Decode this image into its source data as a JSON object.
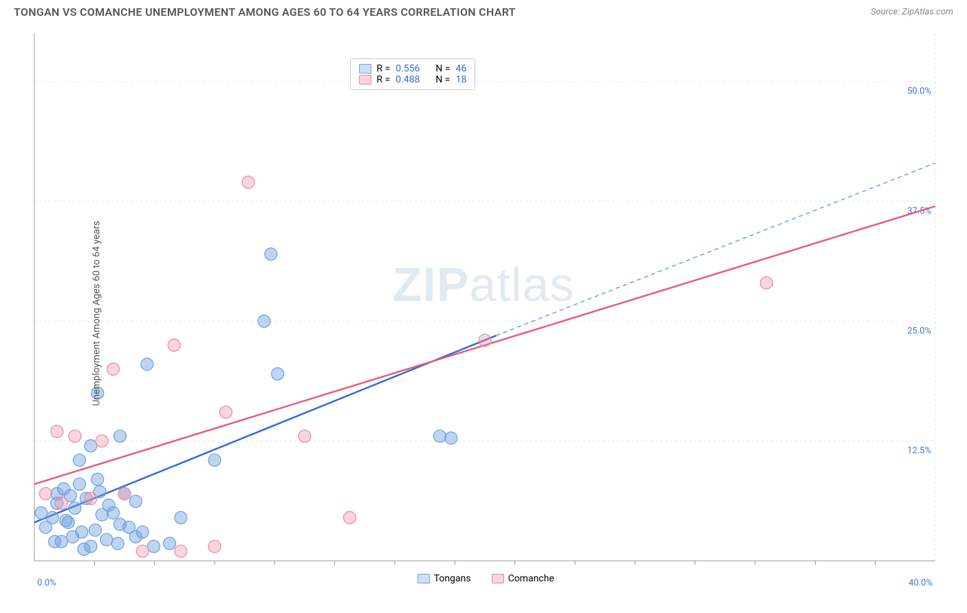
{
  "title": "TONGAN VS COMANCHE UNEMPLOYMENT AMONG AGES 60 TO 64 YEARS CORRELATION CHART",
  "source_label": "Source: ",
  "source_name": "ZipAtlas.com",
  "ylabel": "Unemployment Among Ages 60 to 64 years",
  "watermark_prefix": "ZIP",
  "watermark_suffix": "atlas",
  "chart": {
    "type": "scatter",
    "xlim": [
      0,
      40
    ],
    "ylim": [
      0,
      55
    ],
    "xtick_first": "0.0%",
    "xtick_last": "40.0%",
    "yticks": [
      {
        "value": 12.5,
        "label": "12.5%"
      },
      {
        "value": 25.0,
        "label": "25.0%"
      },
      {
        "value": 37.5,
        "label": "37.5%"
      },
      {
        "value": 50.0,
        "label": "50.0%"
      }
    ],
    "minor_xticks": [
      2.67,
      5.33,
      8,
      10.67,
      13.33,
      16,
      18.67,
      21.33,
      24,
      26.67,
      29.33,
      32,
      34.67,
      37.33
    ],
    "plot_bg": "#ffffff",
    "grid_color": "#e2e2e2",
    "axis_color": "#999999",
    "marker_radius": 9,
    "series": [
      {
        "name": "Tongans",
        "color_fill": "rgba(110,160,225,0.45)",
        "color_stroke": "#6a9fe0",
        "swatch_fill": "#cfe0f6",
        "swatch_stroke": "#6a9fe0",
        "R": "0.556",
        "N": "46",
        "trend": {
          "x1": 0,
          "y1": 4.0,
          "x2": 20.5,
          "y2": 23.5,
          "color": "#2e6bd6",
          "width": 2.5,
          "dash": "none"
        },
        "trend_ext": {
          "x1": 20.5,
          "y1": 23.5,
          "x2": 40,
          "y2": 41.5,
          "color": "#6a9fe0",
          "width": 1.5,
          "dash": "6 5"
        },
        "points": [
          [
            0.3,
            5.0
          ],
          [
            0.5,
            3.5
          ],
          [
            0.8,
            4.5
          ],
          [
            1.0,
            6.0
          ],
          [
            1.2,
            2.0
          ],
          [
            1.3,
            7.5
          ],
          [
            1.5,
            4.0
          ],
          [
            1.7,
            2.5
          ],
          [
            1.8,
            5.5
          ],
          [
            2.0,
            8.0
          ],
          [
            2.1,
            3.0
          ],
          [
            2.3,
            6.5
          ],
          [
            2.5,
            1.5
          ],
          [
            2.7,
            3.2
          ],
          [
            2.8,
            8.5
          ],
          [
            3.0,
            4.8
          ],
          [
            3.2,
            2.2
          ],
          [
            3.5,
            5.0
          ],
          [
            3.7,
            1.8
          ],
          [
            4.0,
            7.0
          ],
          [
            4.2,
            3.5
          ],
          [
            4.5,
            2.5
          ],
          [
            4.5,
            6.2
          ],
          [
            5.0,
            20.5
          ],
          [
            5.3,
            1.5
          ],
          [
            2.0,
            10.5
          ],
          [
            2.8,
            17.5
          ],
          [
            3.8,
            13.0
          ],
          [
            6.0,
            1.8
          ],
          [
            6.5,
            4.5
          ],
          [
            10.5,
            32.0
          ],
          [
            10.2,
            25.0
          ],
          [
            10.8,
            19.5
          ],
          [
            8.0,
            10.5
          ],
          [
            2.5,
            12.0
          ],
          [
            18.0,
            13.0
          ],
          [
            18.5,
            12.8
          ],
          [
            1.0,
            7.0
          ],
          [
            1.4,
            4.2
          ],
          [
            0.9,
            2.0
          ],
          [
            1.6,
            6.8
          ],
          [
            2.2,
            1.2
          ],
          [
            2.9,
            7.2
          ],
          [
            3.3,
            5.8
          ],
          [
            3.8,
            3.8
          ],
          [
            4.8,
            3.0
          ]
        ]
      },
      {
        "name": "Comanche",
        "color_fill": "rgba(240,150,170,0.40)",
        "color_stroke": "#e68aa0",
        "swatch_fill": "#f8d4dc",
        "swatch_stroke": "#e68aa0",
        "R": "0.488",
        "N": "18",
        "trend": {
          "x1": 0,
          "y1": 8.0,
          "x2": 40,
          "y2": 37.0,
          "color": "#e85a80",
          "width": 2.5,
          "dash": "none"
        },
        "points": [
          [
            0.5,
            7.0
          ],
          [
            1.0,
            13.5
          ],
          [
            1.2,
            6.0
          ],
          [
            1.8,
            13.0
          ],
          [
            2.5,
            6.5
          ],
          [
            3.0,
            12.5
          ],
          [
            3.5,
            20.0
          ],
          [
            4.0,
            7.0
          ],
          [
            4.8,
            1.0
          ],
          [
            6.2,
            22.5
          ],
          [
            6.5,
            1.0
          ],
          [
            8.0,
            1.5
          ],
          [
            8.5,
            15.5
          ],
          [
            9.5,
            39.5
          ],
          [
            12.0,
            13.0
          ],
          [
            14.0,
            4.5
          ],
          [
            20.0,
            23.0
          ],
          [
            32.5,
            29.0
          ]
        ]
      }
    ]
  },
  "legend_bottom": [
    {
      "name": "Tongans",
      "fill": "#cfe0f6",
      "stroke": "#6a9fe0"
    },
    {
      "name": "Comanche",
      "fill": "#f8d4dc",
      "stroke": "#e68aa0"
    }
  ],
  "legend_labels": {
    "R": "R =",
    "N": "N ="
  }
}
